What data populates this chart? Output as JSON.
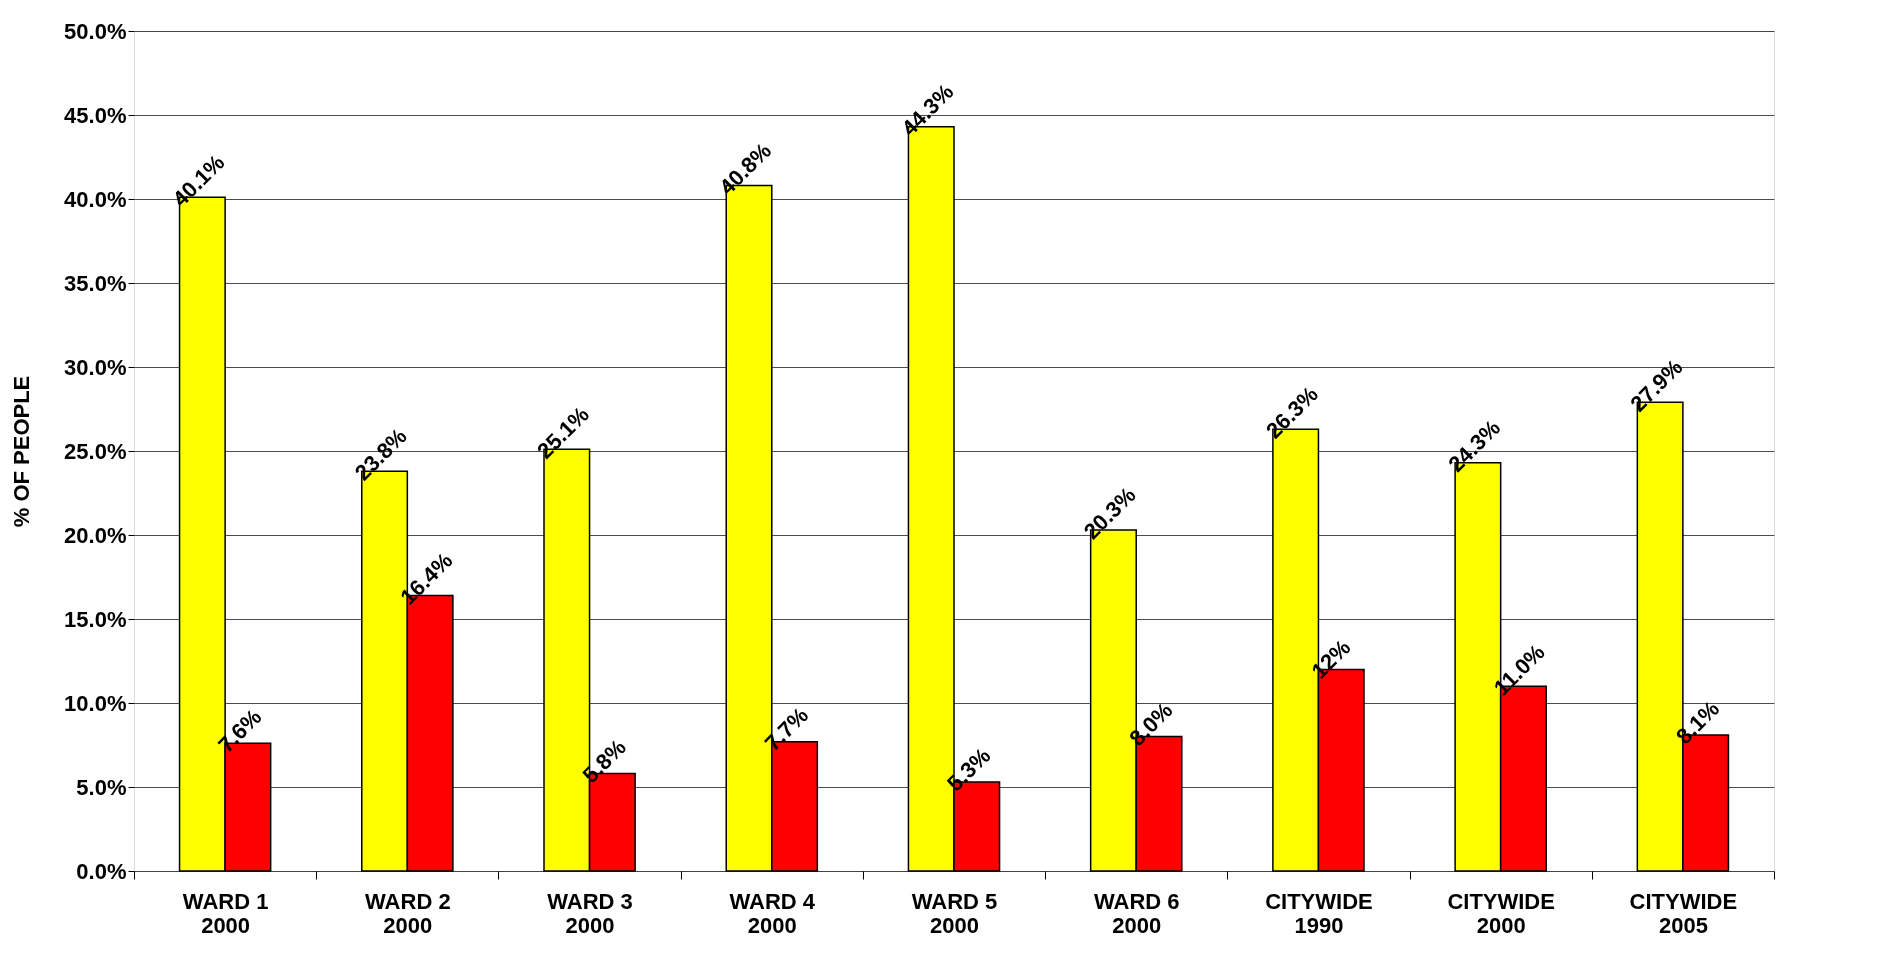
{
  "chart_data": {
    "type": "bar",
    "ylabel": "% OF PEOPLE",
    "categories": [
      "WARD 1\n2000",
      "WARD 2\n2000",
      "WARD 3\n2000",
      "WARD 4\n2000",
      "WARD 5\n2000",
      "WARD 6\n2000",
      "CITYWIDE\n1990",
      "CITYWIDE\n2000",
      "CITYWIDE\n2005"
    ],
    "series": [
      {
        "color": "#ffff00",
        "values": [
          40.1,
          23.8,
          25.1,
          40.8,
          44.3,
          20.3,
          26.3,
          24.3,
          27.9
        ],
        "value_labels": [
          "40.1%",
          "23.8%",
          "25.1%",
          "40.8%",
          "44.3%",
          "20.3%",
          "26.3%",
          "24.3%",
          "27.9%"
        ]
      },
      {
        "color": "#ff0000",
        "values": [
          7.6,
          16.4,
          5.8,
          7.7,
          5.3,
          8.0,
          12.0,
          11.0,
          8.1
        ],
        "value_labels": [
          "7.6%",
          "16.4%",
          "5.8%",
          "7.7%",
          "5.3%",
          "8.0%",
          "12%",
          "11.0%",
          "8.1%"
        ]
      }
    ],
    "ylim": [
      0,
      50
    ],
    "yticks": [
      {
        "value": 0,
        "label": "0.0%"
      },
      {
        "value": 5,
        "label": "5.0%"
      },
      {
        "value": 10,
        "label": "10.0%"
      },
      {
        "value": 15,
        "label": "15.0%"
      },
      {
        "value": 20,
        "label": "20.0%"
      },
      {
        "value": 25,
        "label": "25.0%"
      },
      {
        "value": 30,
        "label": "30.0%"
      },
      {
        "value": 35,
        "label": "35.0%"
      },
      {
        "value": 40,
        "label": "40.0%"
      },
      {
        "value": 45,
        "label": "45.0%"
      },
      {
        "value": 50,
        "label": "50.0%"
      }
    ],
    "grid": "y",
    "legend": false
  }
}
